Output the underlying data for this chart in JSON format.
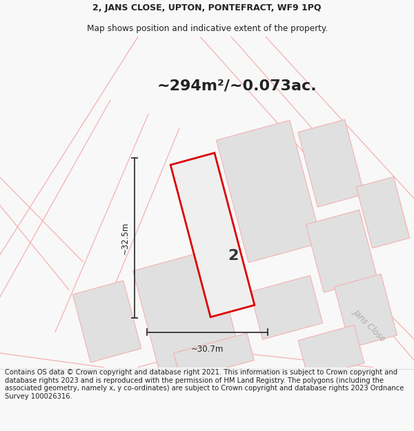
{
  "title_line1": "2, JANS CLOSE, UPTON, PONTEFRACT, WF9 1PQ",
  "title_line2": "Map shows position and indicative extent of the property.",
  "area_text": "~294m²/~0.073ac.",
  "plot_number": "2",
  "dim_width": "~30.7m",
  "dim_height": "~32.5m",
  "road_label": "Jans Close",
  "footer_text": "Contains OS data © Crown copyright and database right 2021. This information is subject to Crown copyright and database rights 2023 and is reproduced with the permission of HM Land Registry. The polygons (including the associated geometry, namely x, y co-ordinates) are subject to Crown copyright and database rights 2023 Ordnance Survey 100026316.",
  "bg_color": "#f8f8f8",
  "map_bg_color": "#ffffff",
  "plot_fill_color": "#e6e6e6",
  "plot_edge_color": "#dd0000",
  "other_plots_fill": "#e0e0e0",
  "other_plots_edge": "#f5b0b0",
  "road_lines_color": "#f5b0b0",
  "dim_line_color": "#333333",
  "title_fontsize": 9.0,
  "area_fontsize": 16,
  "footer_fontsize": 7.2,
  "plot_number_fontsize": 16,
  "road_label_fontsize": 8.5,
  "dim_fontsize": 8.5
}
